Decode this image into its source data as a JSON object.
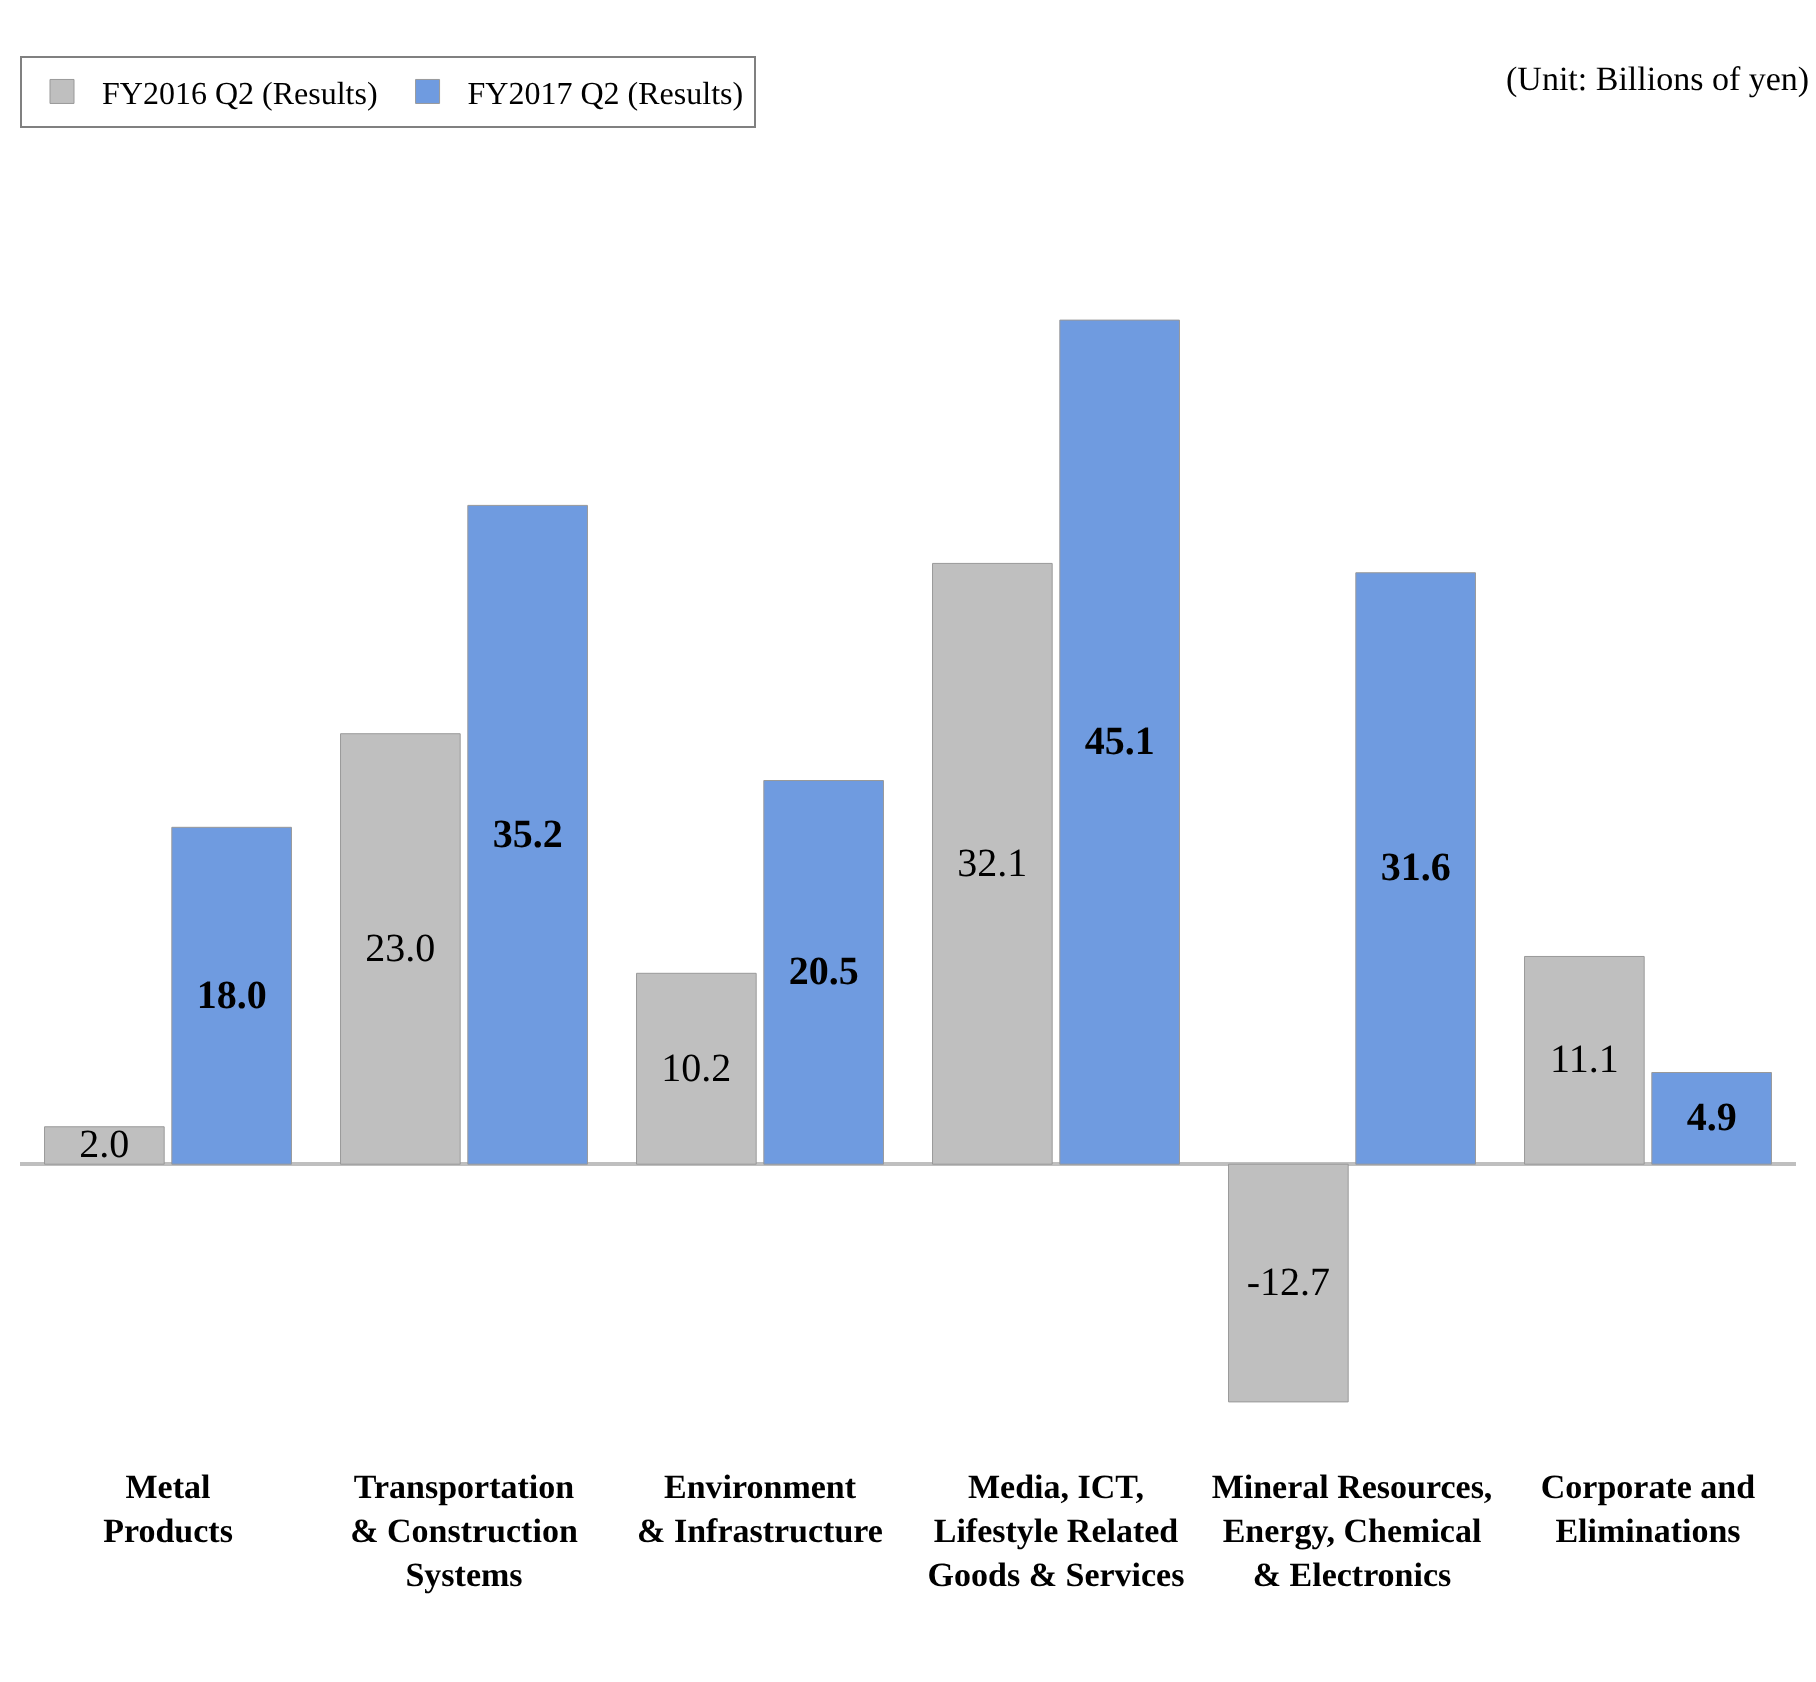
{
  "chart_data": {
    "type": "bar",
    "categories": [
      "Metal\nProducts",
      "Transportation\n& Construction\nSystems",
      "Environment\n& Infrastructure",
      "Media, ICT,\nLifestyle Related\nGoods & Services",
      "Mineral Resources,\nEnergy, Chemical\n& Electronics",
      "Corporate and\nEliminations"
    ],
    "series": [
      {
        "name": "FY2016 Q2 (Results)",
        "color": "#bfbfbf",
        "values": [
          2.0,
          23.0,
          10.2,
          32.1,
          -12.7,
          11.1
        ],
        "value_labels": [
          "2.0",
          "23.0",
          "10.2",
          "32.1",
          "-12.7",
          "11.1"
        ]
      },
      {
        "name": "FY2017 Q2 (Results)",
        "color": "#6f9be0",
        "values": [
          18.0,
          35.2,
          20.5,
          45.1,
          31.6,
          4.9
        ],
        "value_labels": [
          "18.0",
          "35.2",
          "20.5",
          "45.1",
          "31.6",
          "4.9"
        ]
      }
    ],
    "legend": "top left",
    "annotations": [
      "(Unit: Billions of yen)"
    ]
  }
}
